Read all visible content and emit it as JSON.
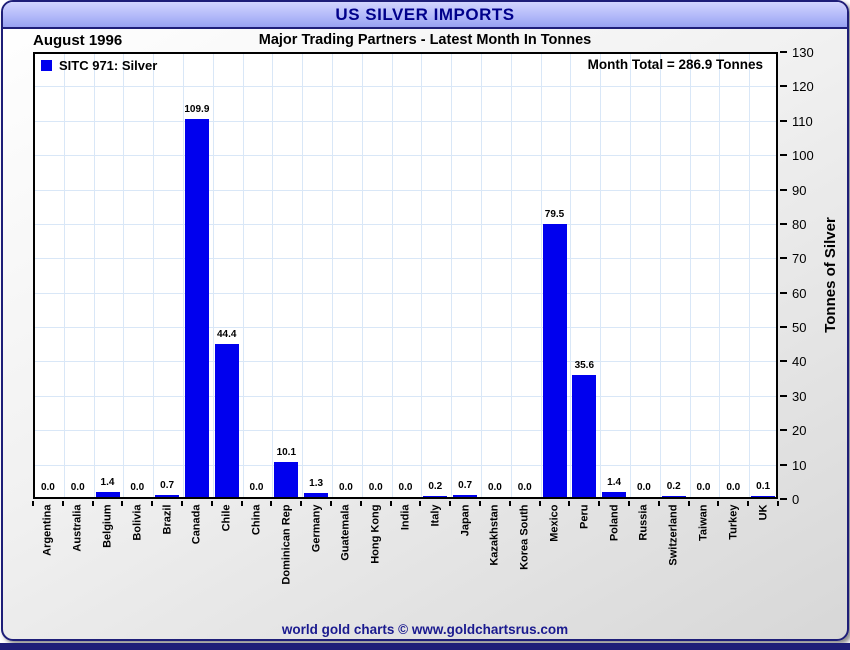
{
  "header": {
    "title": "US SILVER IMPORTS"
  },
  "subheader": {
    "date_label": "August 1996",
    "subtitle": "Major Trading Partners - Latest Month In Tonnes"
  },
  "legend": {
    "label": "SITC 971: Silver"
  },
  "annotations": {
    "month_total": "Month Total = 286.9 Tonnes"
  },
  "footer": {
    "credit": "world gold charts © www.goldchartsrus.com"
  },
  "colors": {
    "bar": "#0000ee",
    "title_text": "#00008b",
    "footer_text": "#1a1a8f",
    "gridline": "#d9e7f7",
    "frame_border": "#1e1e78",
    "header_gradient_top": "#d2d5fe",
    "header_gradient_bottom": "#98a2f2"
  },
  "chart_data": {
    "type": "bar",
    "title": "US SILVER IMPORTS",
    "subtitle": "Major Trading Partners - Latest Month In Tonnes",
    "period": "August 1996",
    "series_name": "SITC 971: Silver",
    "month_total_tonnes": 286.9,
    "categories": [
      "Argentina",
      "Australia",
      "Belgium",
      "Bolivia",
      "Brazil",
      "Canada",
      "Chile",
      "China",
      "Dominican Rep",
      "Germany",
      "Guatemala",
      "Hong Kong",
      "India",
      "Italy",
      "Japan",
      "Kazakhstan",
      "Korea South",
      "Mexico",
      "Peru",
      "Poland",
      "Russia",
      "Switzerland",
      "Taiwan",
      "Turkey",
      "UK"
    ],
    "values": [
      0.0,
      0.0,
      1.4,
      0.0,
      0.7,
      109.9,
      44.4,
      0.0,
      10.1,
      1.3,
      0.0,
      0.0,
      0.0,
      0.2,
      0.7,
      0.0,
      0.0,
      79.5,
      35.6,
      1.4,
      0.0,
      0.2,
      0.0,
      0.0,
      0.1
    ],
    "xlabel": "",
    "ylabel": "Tonnes of Silver",
    "ylim": [
      0,
      130
    ],
    "ytick_step": 10,
    "grid": true,
    "legend_position": "top-left",
    "value_labels_shown": true
  }
}
